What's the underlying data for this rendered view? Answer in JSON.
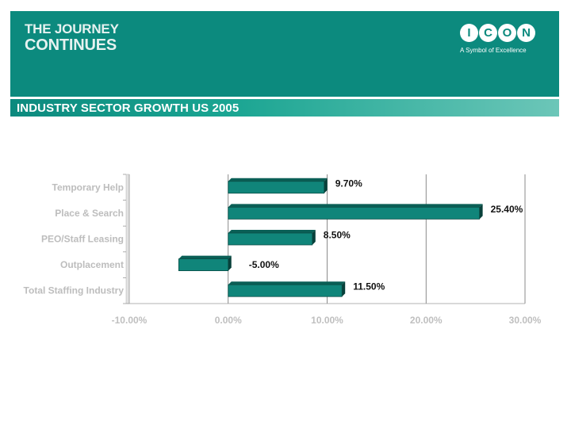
{
  "header": {
    "tagline_line1": "THE JOURNEY",
    "tagline_line2": "CONTINUES",
    "logo_letters": [
      "I",
      "C",
      "O",
      "N"
    ],
    "logo_subtitle": "A Symbol of Excellence",
    "band_color": "#0c8a7e"
  },
  "chart_data": {
    "type": "bar",
    "orientation": "horizontal",
    "title": "INDUSTRY SECTOR GROWTH US 2005",
    "categories": [
      "Temporary Help",
      "Place & Search",
      "PEO/Staff Leasing",
      "Outplacement",
      "Total Staffing Industry"
    ],
    "values": [
      9.7,
      25.4,
      8.5,
      -5.0,
      11.5
    ],
    "value_labels": [
      "9.70%",
      "25.40%",
      "8.50%",
      "-5.00%",
      "11.50%"
    ],
    "xlim": [
      -10,
      30
    ],
    "xticks": [
      -10,
      0,
      10,
      20,
      30
    ],
    "xtick_labels": [
      "-10.00%",
      "0.00%",
      "10.00%",
      "20.00%",
      "30.00%"
    ],
    "gridlines": "vertical",
    "bar_color": "#10857a",
    "xlabel": "",
    "ylabel": ""
  }
}
